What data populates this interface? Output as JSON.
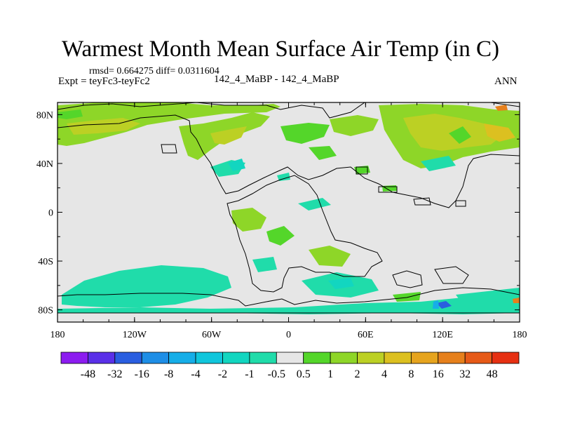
{
  "title": "Warmest Month Mean Surface Air Temp (in C)",
  "stats_line": "rmsd= 0.664275 diff= 0.0311604",
  "experiment": "Expt = teyFc3-teyFc2",
  "center_label": "142_4_MaBP - 142_4_MaBP",
  "season": "ANN",
  "map": {
    "type": "filled-contour-difference-map",
    "lon_range": [
      -180,
      180
    ],
    "lat_range": [
      -90,
      90
    ],
    "x_tick_labels": [
      "180",
      "120W",
      "60W",
      "0",
      "60E",
      "120E",
      "180"
    ],
    "y_tick_labels": [
      "80N",
      "40N",
      "0",
      "40S",
      "80S"
    ],
    "background_color": "#e6e6e6"
  },
  "colorbar": {
    "labels": [
      "-48",
      "-32",
      "-16",
      "-8",
      "-4",
      "-2",
      "-1",
      "-0.5",
      "0.5",
      "1",
      "2",
      "4",
      "8",
      "16",
      "32",
      "48"
    ],
    "colors": [
      "#8c1cf0",
      "#5a30e8",
      "#2a5ee0",
      "#1e8ee6",
      "#16aee8",
      "#10c6dc",
      "#12d6c0",
      "#20dcaa",
      "#e6e6e6",
      "#54d62a",
      "#8ed628",
      "#bcd024",
      "#dcc020",
      "#e6a41e",
      "#e6801c",
      "#e65a18",
      "#e63012"
    ]
  }
}
